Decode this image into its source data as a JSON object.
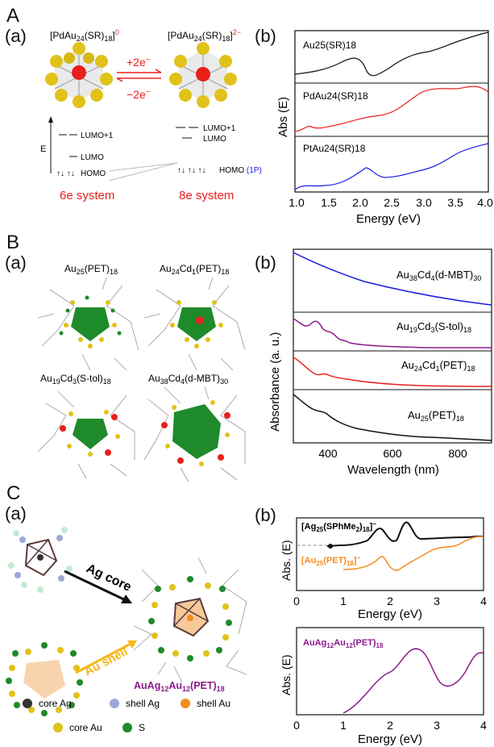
{
  "panelA": {
    "letter": "A",
    "sub_a": "(a)",
    "sub_b": "(b)",
    "left_formula": "[PdAu24(SR)18]0",
    "right_formula": "[PdAu24(SR)18]2−",
    "plus_label": "+2e−",
    "minus_label": "−2e−",
    "e_axis": "E",
    "levels": {
      "lumo1_left": "LUMO+1",
      "lumo_left": "LUMO",
      "homo_left": "HOMO",
      "lumo1_right": "LUMO+1",
      "lumo_right": "LUMO",
      "homo_right": "HOMO",
      "homo_right_1p": "(1P)"
    },
    "left_system": "6e system",
    "right_system": "8e system",
    "spectra": {
      "ylabel": "Abs (E)",
      "xlabel": "Energy (eV)",
      "xticks": [
        "1.0",
        "1.5",
        "2.0",
        "2.5",
        "3.0",
        "3.5",
        "4.0"
      ],
      "labels": [
        "Au25(SR)18",
        "PdAu24(SR)18",
        "PtAu24(SR)18"
      ]
    }
  },
  "panelB": {
    "letter": "B",
    "sub_a": "(a)",
    "sub_b": "(b)",
    "structures": [
      "Au25(PET)18",
      "Au24Cd1(PET)18",
      "Au19Cd3(S-tol)18",
      "Au38Cd4(d-MBT)30"
    ],
    "chart": {
      "ylabel": "Absorbance (a. u.)",
      "xlabel": "Wavelength (nm)",
      "xticks": [
        "400",
        "600",
        "800"
      ],
      "labels": [
        "Au38Cd4(d-MBT)30",
        "Au19Cd3(S-tol)18",
        "Au24Cd1(PET)18",
        "Au25(PET)18"
      ]
    }
  },
  "panelC": {
    "letter": "C",
    "sub_a": "(a)",
    "sub_b": "(b)",
    "ag_core": "Ag core",
    "au_shell": "Au shell",
    "product": "AuAg12Au12(PET)18",
    "legend": [
      "core Ag",
      "shell Ag",
      "shell Au",
      "core Au",
      "S"
    ],
    "top_chart": {
      "ylabel": "Abs. (E)",
      "xlabel": "Energy (eV)",
      "xticks": [
        "0",
        "1",
        "2",
        "3",
        "4"
      ],
      "label_black": "[Ag25(SPhMe2)18]−",
      "label_orange": "[Au25(PET)18]−"
    },
    "bottom_chart": {
      "ylabel": "Abs. (E)",
      "xlabel": "Energy (eV)",
      "xticks": [
        "0",
        "1",
        "2",
        "3",
        "4"
      ],
      "label": "AuAg12Au12(PET)18"
    }
  },
  "colors": {
    "red": "#e8201c",
    "blue": "#1a1ae0",
    "purple": "#8a1a8a",
    "black": "#111111",
    "orange": "#f28c1e",
    "gold": "#e0c21a",
    "green": "#1f8a2a",
    "silver": "#9fa6d8"
  }
}
